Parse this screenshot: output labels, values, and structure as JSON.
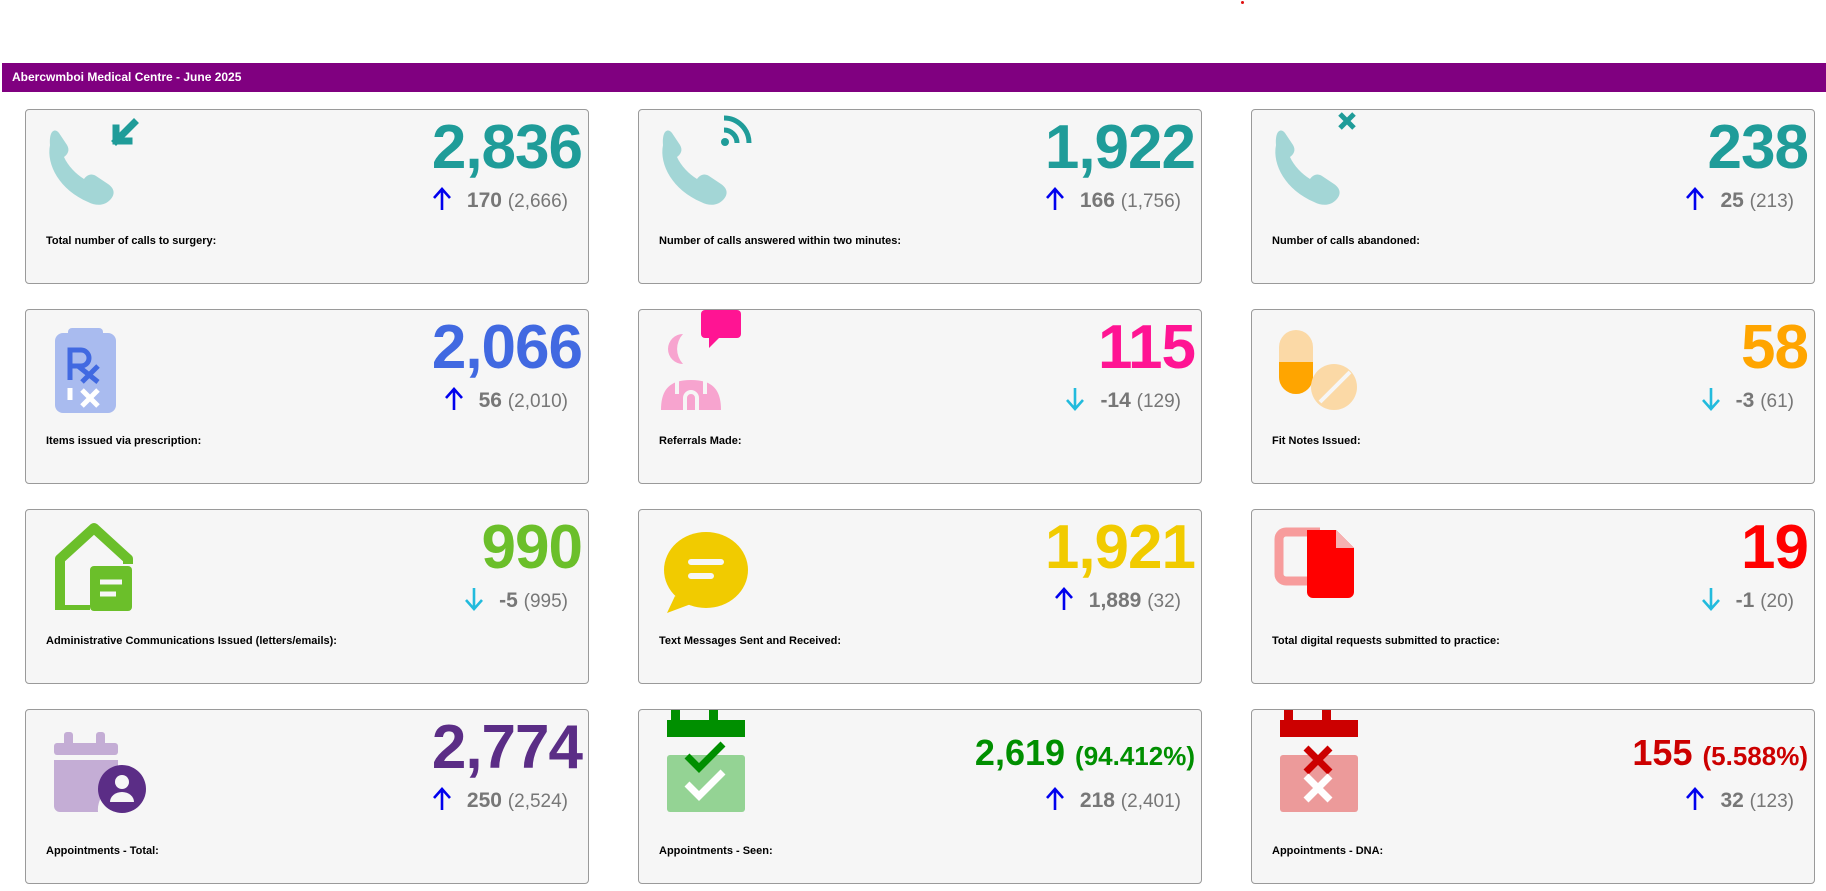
{
  "header": {
    "title": "Abercwmboi Medical Centre - June 2025"
  },
  "colors": {
    "header_bg": "#800080",
    "up_arrow": "#0000ee",
    "down_arrow": "#22bbdd",
    "teal": "#1f9c99",
    "blue": "#4169e1",
    "pink": "#ff1493",
    "orange": "#ffa500",
    "green_light": "#6bbf2a",
    "yellow": "#f1cb00",
    "red": "#ff0000",
    "purple": "#5b2d86",
    "green": "#008f00",
    "dark_red": "#cc0000"
  },
  "cards": [
    {
      "icon": "phone-incoming-icon",
      "value": "2,836",
      "direction": "up",
      "change": "170",
      "previous": "(2,666)",
      "label": "Total number of calls to surgery:"
    },
    {
      "icon": "phone-ringing-icon",
      "value": "1,922",
      "direction": "up",
      "change": "166",
      "previous": "(1,756)",
      "label": "Number of calls answered within two minutes:"
    },
    {
      "icon": "phone-missed-icon",
      "value": "238",
      "direction": "up",
      "change": "25",
      "previous": "(213)",
      "label": "Number of calls abandoned:"
    },
    {
      "icon": "prescription-icon",
      "value": "2,066",
      "direction": "up",
      "change": "56",
      "previous": "(2,010)",
      "label": "Items issued via prescription:"
    },
    {
      "icon": "doctor-referral-icon",
      "value": "115",
      "direction": "down",
      "change": "-14",
      "previous": "(129)",
      "label": "Referrals Made:"
    },
    {
      "icon": "pills-icon",
      "value": "58",
      "direction": "down",
      "change": "-3",
      "previous": "(61)",
      "label": "Fit Notes Issued:"
    },
    {
      "icon": "house-letter-icon",
      "value": "990",
      "direction": "down",
      "change": "-5",
      "previous": "(995)",
      "label": "Administrative Communications Issued (letters/emails):"
    },
    {
      "icon": "message-bubble-icon",
      "value": "1,921",
      "direction": "up",
      "change": "1,889",
      "previous": "(32)",
      "label": "Text Messages Sent and Received:"
    },
    {
      "icon": "digital-request-icon",
      "value": "19",
      "direction": "down",
      "change": "-1",
      "previous": "(20)",
      "label": "Total digital requests submitted to practice:"
    },
    {
      "icon": "calendar-user-icon",
      "value": "2,774",
      "direction": "up",
      "change": "250",
      "previous": "(2,524)",
      "label": "Appointments - Total:"
    },
    {
      "icon": "calendar-check-icon",
      "value": "2,619",
      "percent": "(94.412%)",
      "direction": "up",
      "change": "218",
      "previous": "(2,401)",
      "label": "Appointments - Seen:"
    },
    {
      "icon": "calendar-x-icon",
      "value": "155",
      "percent": "(5.588%)",
      "direction": "up",
      "change": "32",
      "previous": "(123)",
      "label": "Appointments - DNA:"
    }
  ]
}
